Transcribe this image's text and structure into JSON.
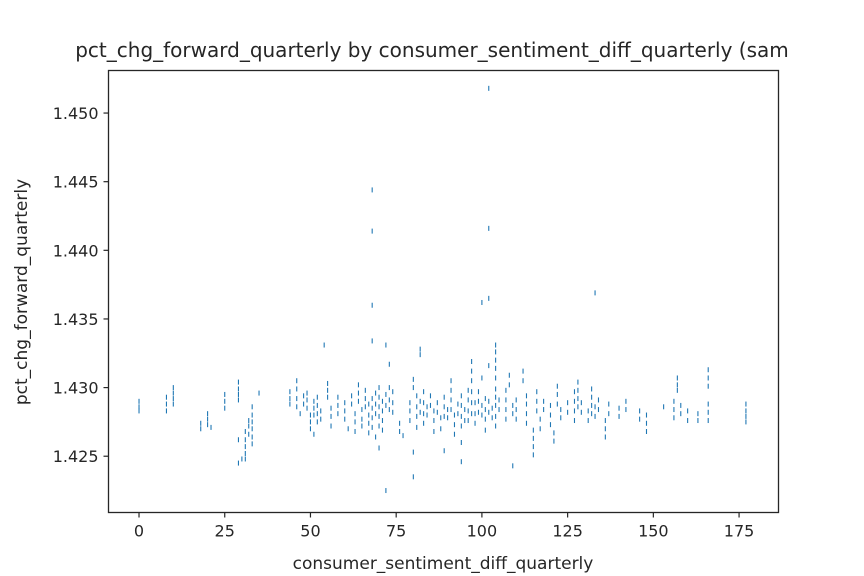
{
  "chart_data": {
    "type": "scatter",
    "title": "pct_chg_forward_quarterly by consumer_sentiment_diff_quarterly (sam",
    "xlabel": "consumer_sentiment_diff_quarterly",
    "ylabel": "pct_chg_forward_quarterly",
    "xlim": [
      -8.9,
      186.5
    ],
    "ylim": [
      1.4209,
      1.4531
    ],
    "xticks": [
      0,
      25,
      50,
      75,
      100,
      125,
      150,
      175
    ],
    "yticks": [
      1.425,
      1.43,
      1.435,
      1.44,
      1.445,
      1.45
    ],
    "ytick_labels": [
      "1.425",
      "1.430",
      "1.435",
      "1.440",
      "1.445",
      "1.450"
    ],
    "grid": false,
    "marker": "small vertical tick",
    "color": "#1f77b4",
    "points": [
      [
        0,
        1.429
      ],
      [
        0,
        1.4286
      ],
      [
        0,
        1.4283
      ],
      [
        8,
        1.4293
      ],
      [
        8,
        1.4288
      ],
      [
        8,
        1.4283
      ],
      [
        10,
        1.43
      ],
      [
        10,
        1.4296
      ],
      [
        10,
        1.4292
      ],
      [
        10,
        1.4288
      ],
      [
        18,
        1.4274
      ],
      [
        18,
        1.427
      ],
      [
        20,
        1.4281
      ],
      [
        20,
        1.4277
      ],
      [
        20,
        1.4273
      ],
      [
        21,
        1.4271
      ],
      [
        25,
        1.4295
      ],
      [
        25,
        1.429
      ],
      [
        25,
        1.4285
      ],
      [
        29,
        1.4304
      ],
      [
        29,
        1.4299
      ],
      [
        29,
        1.4295
      ],
      [
        29,
        1.4291
      ],
      [
        29,
        1.4262
      ],
      [
        29,
        1.4245
      ],
      [
        30,
        1.4248
      ],
      [
        31,
        1.4268
      ],
      [
        31,
        1.4262
      ],
      [
        31,
        1.4257
      ],
      [
        31,
        1.4252
      ],
      [
        31,
        1.4248
      ],
      [
        32,
        1.4276
      ],
      [
        32,
        1.4272
      ],
      [
        32,
        1.4266
      ],
      [
        33,
        1.4286
      ],
      [
        33,
        1.428
      ],
      [
        33,
        1.4275
      ],
      [
        33,
        1.427
      ],
      [
        33,
        1.4264
      ],
      [
        33,
        1.4259
      ],
      [
        35,
        1.4296
      ],
      [
        44,
        1.4297
      ],
      [
        44,
        1.4292
      ],
      [
        44,
        1.4288
      ],
      [
        46,
        1.4305
      ],
      [
        46,
        1.4299
      ],
      [
        46,
        1.4292
      ],
      [
        46,
        1.4286
      ],
      [
        47,
        1.4281
      ],
      [
        48,
        1.4294
      ],
      [
        48,
        1.4288
      ],
      [
        49,
        1.4296
      ],
      [
        49,
        1.4291
      ],
      [
        49,
        1.4285
      ],
      [
        50,
        1.428
      ],
      [
        50,
        1.4275
      ],
      [
        50,
        1.427
      ],
      [
        51,
        1.429
      ],
      [
        51,
        1.4285
      ],
      [
        51,
        1.428
      ],
      [
        51,
        1.4266
      ],
      [
        52,
        1.4293
      ],
      [
        52,
        1.4287
      ],
      [
        52,
        1.4281
      ],
      [
        52,
        1.4275
      ],
      [
        53,
        1.4283
      ],
      [
        53,
        1.4277
      ],
      [
        54,
        1.4331
      ],
      [
        55,
        1.4303
      ],
      [
        55,
        1.4298
      ],
      [
        55,
        1.4293
      ],
      [
        56,
        1.4285
      ],
      [
        56,
        1.4279
      ],
      [
        56,
        1.4272
      ],
      [
        58,
        1.4293
      ],
      [
        58,
        1.4287
      ],
      [
        58,
        1.4281
      ],
      [
        60,
        1.4289
      ],
      [
        60,
        1.4283
      ],
      [
        60,
        1.4277
      ],
      [
        61,
        1.427
      ],
      [
        62,
        1.4294
      ],
      [
        62,
        1.4288
      ],
      [
        63,
        1.4281
      ],
      [
        63,
        1.4275
      ],
      [
        63,
        1.4268
      ],
      [
        64,
        1.4302
      ],
      [
        64,
        1.4296
      ],
      [
        64,
        1.429
      ],
      [
        65,
        1.4284
      ],
      [
        65,
        1.4277
      ],
      [
        65,
        1.4272
      ],
      [
        66,
        1.4298
      ],
      [
        66,
        1.4292
      ],
      [
        66,
        1.4286
      ],
      [
        67,
        1.4288
      ],
      [
        67,
        1.428
      ],
      [
        67,
        1.4274
      ],
      [
        67,
        1.4267
      ],
      [
        68,
        1.4444
      ],
      [
        68,
        1.4414
      ],
      [
        68,
        1.436
      ],
      [
        68,
        1.4334
      ],
      [
        68,
        1.4292
      ],
      [
        68,
        1.4285
      ],
      [
        68,
        1.4278
      ],
      [
        68,
        1.4271
      ],
      [
        69,
        1.4296
      ],
      [
        69,
        1.4288
      ],
      [
        69,
        1.4281
      ],
      [
        69,
        1.4264
      ],
      [
        70,
        1.43
      ],
      [
        70,
        1.4293
      ],
      [
        70,
        1.4286
      ],
      [
        70,
        1.4279
      ],
      [
        70,
        1.4272
      ],
      [
        70,
        1.4256
      ],
      [
        71,
        1.429
      ],
      [
        71,
        1.4283
      ],
      [
        71,
        1.4276
      ],
      [
        71,
        1.4269
      ],
      [
        72,
        1.4331
      ],
      [
        72,
        1.4295
      ],
      [
        72,
        1.4287
      ],
      [
        72,
        1.4225
      ],
      [
        73,
        1.43
      ],
      [
        73,
        1.4291
      ],
      [
        73,
        1.4284
      ],
      [
        73,
        1.4317
      ],
      [
        74,
        1.4297
      ],
      [
        74,
        1.4289
      ],
      [
        74,
        1.4282
      ],
      [
        76,
        1.4274
      ],
      [
        76,
        1.4268
      ],
      [
        77,
        1.4265
      ],
      [
        79,
        1.4289
      ],
      [
        79,
        1.4283
      ],
      [
        79,
        1.4276
      ],
      [
        80,
        1.4306
      ],
      [
        80,
        1.43
      ],
      [
        80,
        1.4253
      ],
      [
        80,
        1.4235
      ],
      [
        81,
        1.4294
      ],
      [
        81,
        1.4286
      ],
      [
        81,
        1.4279
      ],
      [
        81,
        1.4271
      ],
      [
        82,
        1.4328
      ],
      [
        82,
        1.4324
      ],
      [
        82,
        1.429
      ],
      [
        82,
        1.4282
      ],
      [
        83,
        1.4297
      ],
      [
        83,
        1.4289
      ],
      [
        83,
        1.4281
      ],
      [
        83,
        1.4274
      ],
      [
        84,
        1.4286
      ],
      [
        84,
        1.428
      ],
      [
        85,
        1.4294
      ],
      [
        85,
        1.4287
      ],
      [
        86,
        1.4283
      ],
      [
        86,
        1.4276
      ],
      [
        86,
        1.4268
      ],
      [
        87,
        1.4289
      ],
      [
        87,
        1.4282
      ],
      [
        88,
        1.4278
      ],
      [
        88,
        1.427
      ],
      [
        89,
        1.4293
      ],
      [
        89,
        1.4286
      ],
      [
        89,
        1.4279
      ],
      [
        89,
        1.4254
      ],
      [
        90,
        1.4284
      ],
      [
        90,
        1.4278
      ],
      [
        91,
        1.4305
      ],
      [
        91,
        1.4298
      ],
      [
        91,
        1.4291
      ],
      [
        91,
        1.4284
      ],
      [
        92,
        1.428
      ],
      [
        92,
        1.4273
      ],
      [
        92,
        1.4266
      ],
      [
        93,
        1.4288
      ],
      [
        93,
        1.4281
      ],
      [
        94,
        1.4294
      ],
      [
        94,
        1.4287
      ],
      [
        94,
        1.4279
      ],
      [
        94,
        1.4272
      ],
      [
        94,
        1.426
      ],
      [
        94,
        1.4246
      ],
      [
        95,
        1.4284
      ],
      [
        95,
        1.4276
      ],
      [
        96,
        1.4298
      ],
      [
        96,
        1.4291
      ],
      [
        96,
        1.4283
      ],
      [
        96,
        1.4276
      ],
      [
        97,
        1.4319
      ],
      [
        97,
        1.4312
      ],
      [
        97,
        1.4305
      ],
      [
        97,
        1.4297
      ],
      [
        97,
        1.4289
      ],
      [
        97,
        1.4281
      ],
      [
        98,
        1.4289
      ],
      [
        98,
        1.4281
      ],
      [
        98,
        1.4274
      ],
      [
        99,
        1.4297
      ],
      [
        99,
        1.429
      ],
      [
        99,
        1.4282
      ],
      [
        100,
        1.4362
      ],
      [
        100,
        1.4307
      ],
      [
        100,
        1.4287
      ],
      [
        100,
        1.428
      ],
      [
        101,
        1.4292
      ],
      [
        101,
        1.4284
      ],
      [
        101,
        1.4277
      ],
      [
        101,
        1.4269
      ],
      [
        102,
        1.4518
      ],
      [
        102,
        1.4416
      ],
      [
        102,
        1.4365
      ],
      [
        102,
        1.4316
      ],
      [
        102,
        1.429
      ],
      [
        102,
        1.4282
      ],
      [
        103,
        1.4285
      ],
      [
        103,
        1.4278
      ],
      [
        104,
        1.4331
      ],
      [
        104,
        1.4326
      ],
      [
        104,
        1.432
      ],
      [
        104,
        1.4314
      ],
      [
        104,
        1.4307
      ],
      [
        104,
        1.4299
      ],
      [
        104,
        1.4293
      ],
      [
        104,
        1.4287
      ],
      [
        104,
        1.4279
      ],
      [
        104,
        1.4272
      ],
      [
        105,
        1.4291
      ],
      [
        105,
        1.4284
      ],
      [
        107,
        1.4298
      ],
      [
        107,
        1.4291
      ],
      [
        107,
        1.4284
      ],
      [
        107,
        1.4277
      ],
      [
        108,
        1.4309
      ],
      [
        108,
        1.4302
      ],
      [
        109,
        1.4287
      ],
      [
        109,
        1.4281
      ],
      [
        109,
        1.4243
      ],
      [
        110,
        1.4291
      ],
      [
        110,
        1.4284
      ],
      [
        110,
        1.4277
      ],
      [
        112,
        1.4312
      ],
      [
        112,
        1.4305
      ],
      [
        113,
        1.4294
      ],
      [
        113,
        1.4288
      ],
      [
        113,
        1.4281
      ],
      [
        113,
        1.4274
      ],
      [
        115,
        1.4269
      ],
      [
        115,
        1.4263
      ],
      [
        115,
        1.4257
      ],
      [
        115,
        1.4251
      ],
      [
        116,
        1.4297
      ],
      [
        116,
        1.429
      ],
      [
        116,
        1.4283
      ],
      [
        117,
        1.4277
      ],
      [
        117,
        1.427
      ],
      [
        118,
        1.429
      ],
      [
        118,
        1.4284
      ],
      [
        120,
        1.4287
      ],
      [
        120,
        1.428
      ],
      [
        120,
        1.4273
      ],
      [
        121,
        1.4267
      ],
      [
        121,
        1.4261
      ],
      [
        122,
        1.4301
      ],
      [
        122,
        1.4295
      ],
      [
        122,
        1.4288
      ],
      [
        123,
        1.4284
      ],
      [
        123,
        1.4278
      ],
      [
        125,
        1.4289
      ],
      [
        125,
        1.4282
      ],
      [
        127,
        1.4297
      ],
      [
        127,
        1.429
      ],
      [
        127,
        1.4283
      ],
      [
        127,
        1.4276
      ],
      [
        128,
        1.4304
      ],
      [
        128,
        1.4298
      ],
      [
        128,
        1.4292
      ],
      [
        128,
        1.4286
      ],
      [
        129,
        1.4289
      ],
      [
        129,
        1.4282
      ],
      [
        131,
        1.4283
      ],
      [
        131,
        1.4276
      ],
      [
        132,
        1.4299
      ],
      [
        132,
        1.4293
      ],
      [
        132,
        1.4287
      ],
      [
        132,
        1.4281
      ],
      [
        133,
        1.4369
      ],
      [
        133,
        1.4286
      ],
      [
        133,
        1.4279
      ],
      [
        134,
        1.4291
      ],
      [
        134,
        1.4284
      ],
      [
        136,
        1.4276
      ],
      [
        136,
        1.427
      ],
      [
        136,
        1.4264
      ],
      [
        137,
        1.4288
      ],
      [
        137,
        1.4281
      ],
      [
        140,
        1.4285
      ],
      [
        140,
        1.4279
      ],
      [
        142,
        1.429
      ],
      [
        142,
        1.4284
      ],
      [
        146,
        1.4283
      ],
      [
        146,
        1.4277
      ],
      [
        148,
        1.428
      ],
      [
        148,
        1.4274
      ],
      [
        148,
        1.4268
      ],
      [
        153,
        1.4286
      ],
      [
        156,
        1.429
      ],
      [
        156,
        1.4284
      ],
      [
        156,
        1.4278
      ],
      [
        157,
        1.4307
      ],
      [
        157,
        1.4302
      ],
      [
        157,
        1.4298
      ],
      [
        158,
        1.4287
      ],
      [
        158,
        1.4281
      ],
      [
        160,
        1.4283
      ],
      [
        160,
        1.4276
      ],
      [
        163,
        1.4281
      ],
      [
        163,
        1.4276
      ],
      [
        166,
        1.4313
      ],
      [
        166,
        1.4307
      ],
      [
        166,
        1.4301
      ],
      [
        166,
        1.4288
      ],
      [
        166,
        1.4282
      ],
      [
        166,
        1.4276
      ],
      [
        177,
        1.4288
      ],
      [
        177,
        1.4283
      ],
      [
        177,
        1.4279
      ],
      [
        177,
        1.4275
      ]
    ]
  }
}
